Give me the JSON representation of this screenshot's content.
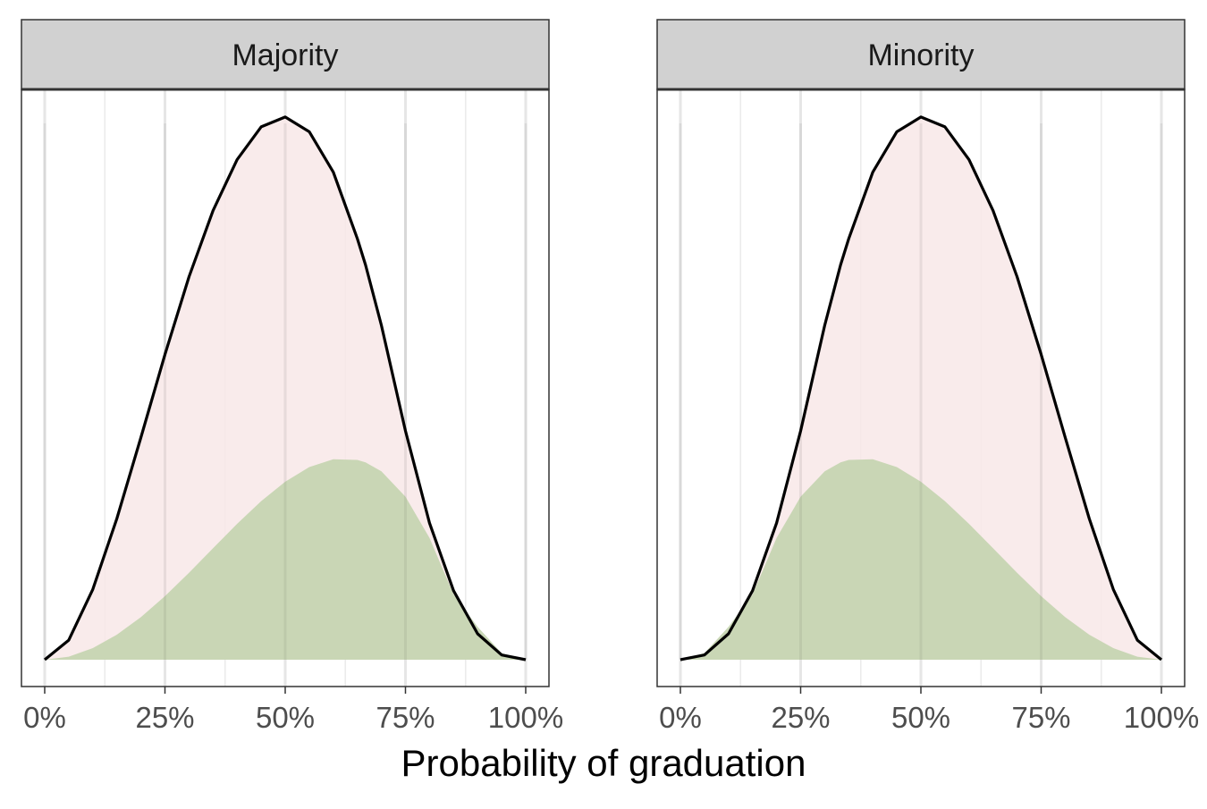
{
  "chart_data": {
    "type": "area",
    "xlabel": "Probability of graduation",
    "ylabel": "",
    "xlim": [
      0,
      1
    ],
    "x_ticks": [
      0,
      0.25,
      0.5,
      0.75,
      1
    ],
    "x_tick_labels": [
      "0%",
      "25%",
      "50%",
      "75%",
      "100%"
    ],
    "y_axis_shown": false,
    "grid": "vertical",
    "colors": {
      "total_fill": "#f8e8e8",
      "outline": "#000000",
      "graduation_fill": "#c6d5b2",
      "strip": "#d1d1d1"
    },
    "facets": [
      {
        "label": "Majority",
        "series": [
          {
            "role": "outline",
            "x": [
              0,
              0.05,
              0.1,
              0.15,
              0.2,
              0.25,
              0.3,
              0.35,
              0.4,
              0.45,
              0.5,
              0.55,
              0.6,
              0.65,
              0.667,
              0.7,
              0.75,
              0.8,
              0.85,
              0.9,
              0.95,
              1
            ],
            "y": [
              0,
              0.0169,
              0.0608,
              0.1219,
              0.192,
              0.2637,
              0.3308,
              0.388,
              0.432,
              0.4603,
              0.4688,
              0.4561,
              0.4212,
              0.3637,
              0.341,
              0.2888,
              0.1977,
              0.1181,
              0.0596,
              0.0224,
              0.0041,
              0
            ]
          },
          {
            "role": "graduation",
            "x": [
              0,
              0.05,
              0.1,
              0.15,
              0.2,
              0.25,
              0.3,
              0.35,
              0.4,
              0.45,
              0.5,
              0.55,
              0.6,
              0.65,
              0.667,
              0.7,
              0.75,
              0.8,
              0.85,
              0.9,
              0.95,
              1
            ],
            "y": [
              0,
              0.0026,
              0.01,
              0.0216,
              0.0368,
              0.0549,
              0.0751,
              0.0963,
              0.1174,
              0.137,
              0.1538,
              0.1664,
              0.1732,
              0.1726,
              0.1705,
              0.1627,
              0.1408,
              0.1052,
              0.0564,
              0.0284,
              0.0057,
              0
            ]
          }
        ]
      },
      {
        "label": "Minority",
        "series": [
          {
            "role": "outline",
            "x": [
              0,
              0.05,
              0.1,
              0.15,
              0.2,
              0.25,
              0.3,
              0.333,
              0.35,
              0.4,
              0.45,
              0.5,
              0.55,
              0.6,
              0.65,
              0.7,
              0.75,
              0.8,
              0.85,
              0.9,
              0.95,
              1
            ],
            "y": [
              0,
              0.0041,
              0.0224,
              0.0596,
              0.1181,
              0.1977,
              0.2888,
              0.341,
              0.3637,
              0.4212,
              0.4561,
              0.4688,
              0.4603,
              0.432,
              0.388,
              0.3308,
              0.2637,
              0.192,
              0.1219,
              0.0608,
              0.0169,
              0
            ]
          },
          {
            "role": "graduation",
            "x": [
              0,
              0.05,
              0.1,
              0.15,
              0.2,
              0.25,
              0.3,
              0.333,
              0.35,
              0.4,
              0.45,
              0.5,
              0.55,
              0.6,
              0.65,
              0.7,
              0.75,
              0.8,
              0.85,
              0.9,
              0.95,
              1
            ],
            "y": [
              0,
              0.0057,
              0.0284,
              0.0564,
              0.1052,
              0.1408,
              0.1627,
              0.1705,
              0.1726,
              0.1732,
              0.1664,
              0.1538,
              0.137,
              0.1174,
              0.0963,
              0.0751,
              0.0549,
              0.0368,
              0.0216,
              0.01,
              0.0026,
              0
            ]
          }
        ]
      }
    ]
  }
}
